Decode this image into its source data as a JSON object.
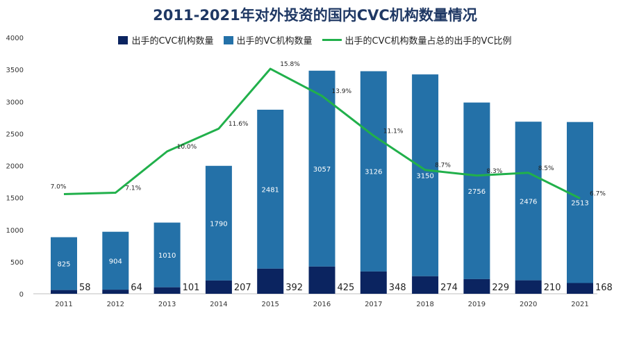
{
  "chart_data": {
    "type": "bar",
    "title": "2011-2021年对外投资的国内CVC机构数量情况",
    "categories": [
      "2011",
      "2012",
      "2013",
      "2014",
      "2015",
      "2016",
      "2017",
      "2018",
      "2019",
      "2020",
      "2021"
    ],
    "series": [
      {
        "name": "出手的CVC机构数量",
        "kind": "bar-stacked",
        "color": "#0b2460",
        "values": [
          58,
          64,
          101,
          207,
          392,
          425,
          348,
          274,
          229,
          210,
          168
        ]
      },
      {
        "name": "出手的VC机构数量",
        "kind": "bar-stacked",
        "color": "#2471a8",
        "values": [
          825,
          904,
          1010,
          1790,
          2481,
          3057,
          3126,
          3150,
          2756,
          2476,
          2513
        ]
      },
      {
        "name": "出手的CVC机构数量占总的出手的VC比例",
        "kind": "line",
        "color": "#21b04b",
        "values": [
          7.0,
          7.1,
          10.0,
          11.6,
          15.8,
          13.9,
          11.1,
          8.7,
          8.3,
          8.5,
          6.7
        ],
        "labels": [
          "7.0%",
          "7.1%",
          "10.0%",
          "11.6%",
          "15.8%",
          "13.9%",
          "11.1%",
          "8.7%",
          "8.3%",
          "8.5%",
          "6.7%"
        ]
      }
    ],
    "ylim": [
      0,
      4000
    ],
    "yticks": [
      0,
      500,
      1000,
      1500,
      2000,
      2500,
      3000,
      3500,
      4000
    ],
    "line_scale_max": 18,
    "xlabel": "",
    "ylabel": ""
  }
}
